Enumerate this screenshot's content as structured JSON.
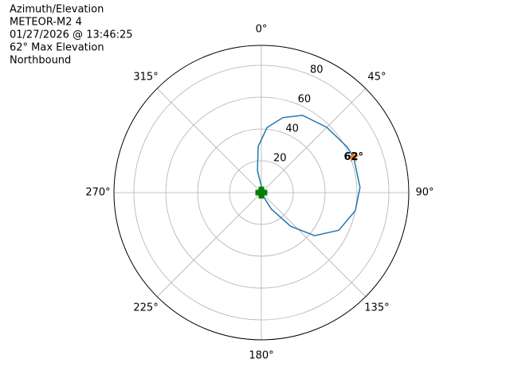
{
  "chart_data": {
    "type": "polar",
    "title_lines": [
      "Azimuth/Elevation",
      "METEOR-M2 4",
      "01/27/2026 @ 13:46:25",
      "62° Max Elevation",
      "Northbound"
    ],
    "theta_direction": "clockwise",
    "theta_zero": "top",
    "thetaticks": [
      {
        "value": 0,
        "label": "0°"
      },
      {
        "value": 45,
        "label": "45°"
      },
      {
        "value": 90,
        "label": "90°"
      },
      {
        "value": 135,
        "label": "135°"
      },
      {
        "value": 180,
        "label": "180°"
      },
      {
        "value": 225,
        "label": "225°"
      },
      {
        "value": 270,
        "label": "270°"
      },
      {
        "value": 315,
        "label": "315°"
      }
    ],
    "rlim": [
      0,
      92.5
    ],
    "rticks": [
      20,
      40,
      60,
      80
    ],
    "grid": true,
    "series": [
      {
        "color": "#1f77b4",
        "theta": [
          14,
          350,
          356,
          5,
          16,
          28,
          45,
          62,
          69,
          87,
          101,
          116,
          129,
          139,
          149,
          153
        ],
        "r": [
          2,
          14,
          29,
          41,
          49,
          55,
          58,
          61,
          62,
          62,
          60,
          54,
          43,
          28,
          12,
          2
        ]
      }
    ],
    "max_point": {
      "theta": 69,
      "r": 62,
      "label": "62°",
      "color": "#ff7f0e"
    },
    "start_point": {
      "theta": 0,
      "r": 0,
      "color": "#008000"
    }
  }
}
